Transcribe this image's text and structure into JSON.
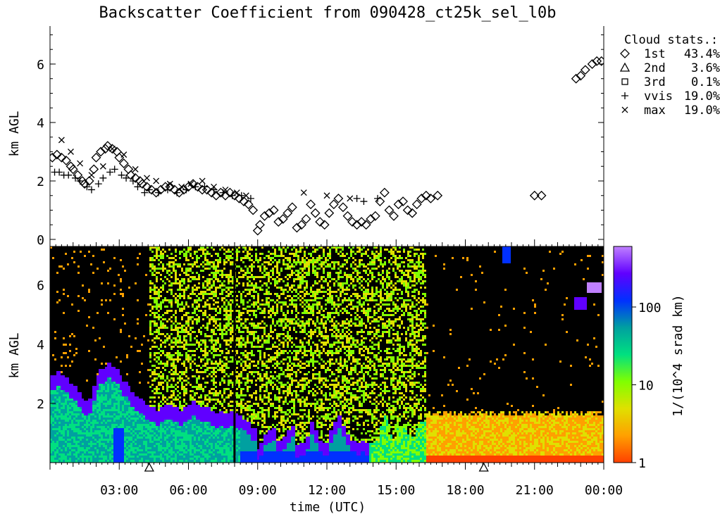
{
  "chart_data": [
    {
      "type": "scatter",
      "title": "Backscatter Coefficient from 090428_ct25k_sel_l0b",
      "ylabel": "km AGL",
      "ylim": [
        0,
        7.3
      ],
      "xlim": [
        0,
        24
      ],
      "y_ticks": [
        "0",
        "2",
        "4",
        "6"
      ],
      "legend": {
        "position": "right",
        "title": "Cloud stats.:",
        "entries": [
          {
            "symbol": "◇",
            "label": "1st",
            "value": "43.4%"
          },
          {
            "symbol": "△",
            "label": "2nd",
            "value": "3.6%"
          },
          {
            "symbol": "□",
            "label": "3rd",
            "value": "0.1%"
          },
          {
            "symbol": "+",
            "label": "vvis",
            "value": "19.0%"
          },
          {
            "symbol": "×",
            "label": "max",
            "value": "19.0%"
          }
        ]
      },
      "series": [
        {
          "name": "1st",
          "marker": "diamond",
          "x": [
            0.1,
            0.3,
            0.5,
            0.7,
            0.9,
            1.0,
            1.2,
            1.4,
            1.5,
            1.7,
            1.9,
            2.0,
            2.2,
            2.4,
            2.5,
            2.7,
            2.9,
            3.0,
            3.2,
            3.4,
            3.5,
            3.7,
            3.9,
            4.0,
            4.2,
            4.4,
            4.6,
            4.8,
            5.0,
            5.2,
            5.4,
            5.6,
            5.8,
            6.0,
            6.2,
            6.4,
            6.6,
            6.8,
            7.0,
            7.2,
            7.4,
            7.6,
            7.8,
            8.0,
            8.2,
            8.4,
            8.6,
            8.8,
            9.0,
            9.1,
            9.3,
            9.5,
            9.7,
            9.9,
            10.1,
            10.3,
            10.5,
            10.7,
            10.9,
            11.1,
            11.3,
            11.5,
            11.7,
            11.9,
            12.1,
            12.3,
            12.5,
            12.7,
            12.9,
            13.1,
            13.3,
            13.5,
            13.7,
            13.9,
            14.1,
            14.3,
            14.5,
            14.7,
            14.9,
            15.1,
            15.3,
            15.5,
            15.7,
            15.9,
            16.1,
            16.3,
            16.5,
            16.8,
            21.0,
            21.3,
            22.8,
            23.0,
            23.2,
            23.5,
            23.7,
            23.9
          ],
          "y": [
            2.8,
            2.9,
            2.8,
            2.7,
            2.5,
            2.4,
            2.2,
            2.0,
            1.9,
            2.0,
            2.4,
            2.8,
            3.0,
            3.1,
            3.2,
            3.1,
            3.0,
            2.8,
            2.6,
            2.4,
            2.2,
            2.1,
            2.0,
            1.9,
            1.8,
            1.7,
            1.6,
            1.7,
            1.8,
            1.8,
            1.7,
            1.6,
            1.7,
            1.8,
            1.9,
            1.8,
            1.7,
            1.7,
            1.6,
            1.5,
            1.6,
            1.5,
            1.6,
            1.5,
            1.4,
            1.3,
            1.2,
            1.0,
            0.3,
            0.5,
            0.8,
            0.9,
            1.0,
            0.6,
            0.7,
            0.9,
            1.1,
            0.4,
            0.5,
            0.7,
            1.2,
            0.9,
            0.6,
            0.5,
            0.9,
            1.2,
            1.4,
            1.1,
            0.8,
            0.6,
            0.5,
            0.6,
            0.5,
            0.7,
            0.8,
            1.3,
            1.6,
            1.0,
            0.8,
            1.2,
            1.3,
            1.0,
            0.9,
            1.2,
            1.4,
            1.5,
            1.4,
            1.5,
            1.5,
            1.5,
            5.5,
            5.6,
            5.8,
            6.0,
            6.1,
            6.1
          ]
        },
        {
          "name": "vvis",
          "marker": "plus",
          "x": [
            0.2,
            0.4,
            0.6,
            0.8,
            1.1,
            1.3,
            1.6,
            1.8,
            2.1,
            2.3,
            2.6,
            2.8,
            3.1,
            3.3,
            3.6,
            3.8,
            4.1,
            4.3,
            4.7,
            5.1,
            5.5,
            5.9,
            6.3,
            6.7,
            7.1,
            7.5,
            7.9,
            8.3,
            8.7,
            13.3,
            13.6,
            14.2
          ],
          "y": [
            2.3,
            2.3,
            2.2,
            2.2,
            2.1,
            2.0,
            1.8,
            1.7,
            1.9,
            2.1,
            2.3,
            2.4,
            2.2,
            2.1,
            2.0,
            1.8,
            1.6,
            1.7,
            1.6,
            1.7,
            1.6,
            1.7,
            1.8,
            1.8,
            1.7,
            1.6,
            1.5,
            1.5,
            1.4,
            1.4,
            1.3,
            1.4
          ]
        },
        {
          "name": "max",
          "marker": "x",
          "x": [
            0.5,
            0.9,
            1.3,
            1.8,
            2.3,
            2.7,
            3.2,
            3.7,
            4.2,
            4.6,
            5.2,
            5.7,
            6.1,
            6.6,
            7.1,
            7.6,
            8.1,
            8.5,
            11.0,
            12.0,
            13.0
          ],
          "y": [
            3.4,
            3.0,
            2.6,
            2.2,
            2.5,
            3.1,
            2.9,
            2.4,
            2.1,
            2.0,
            1.9,
            1.8,
            1.9,
            2.0,
            1.8,
            1.7,
            1.6,
            1.5,
            1.6,
            1.5,
            1.4
          ]
        }
      ]
    },
    {
      "type": "heatmap",
      "xlabel": "time (UTC)",
      "ylabel": "km AGL",
      "ylim": [
        0,
        7.3
      ],
      "xlim": [
        0,
        24
      ],
      "x_ticks": [
        "03:00",
        "06:00",
        "09:00",
        "12:00",
        "15:00",
        "18:00",
        "21:00",
        "00:00"
      ],
      "y_ticks": [
        "2",
        "4",
        "6"
      ],
      "colorbar": {
        "label": "1/(10^4 srad km)",
        "scale": "log",
        "range": [
          1,
          600
        ],
        "ticks": [
          "1",
          "10",
          "100"
        ],
        "colors": [
          "#ff4000",
          "#ffa000",
          "#e0e000",
          "#80ff00",
          "#00e080",
          "#00a0a0",
          "#0030ff",
          "#6000ff",
          "#c080ff"
        ]
      },
      "triangle_markers": [
        4.3,
        18.8
      ]
    }
  ]
}
